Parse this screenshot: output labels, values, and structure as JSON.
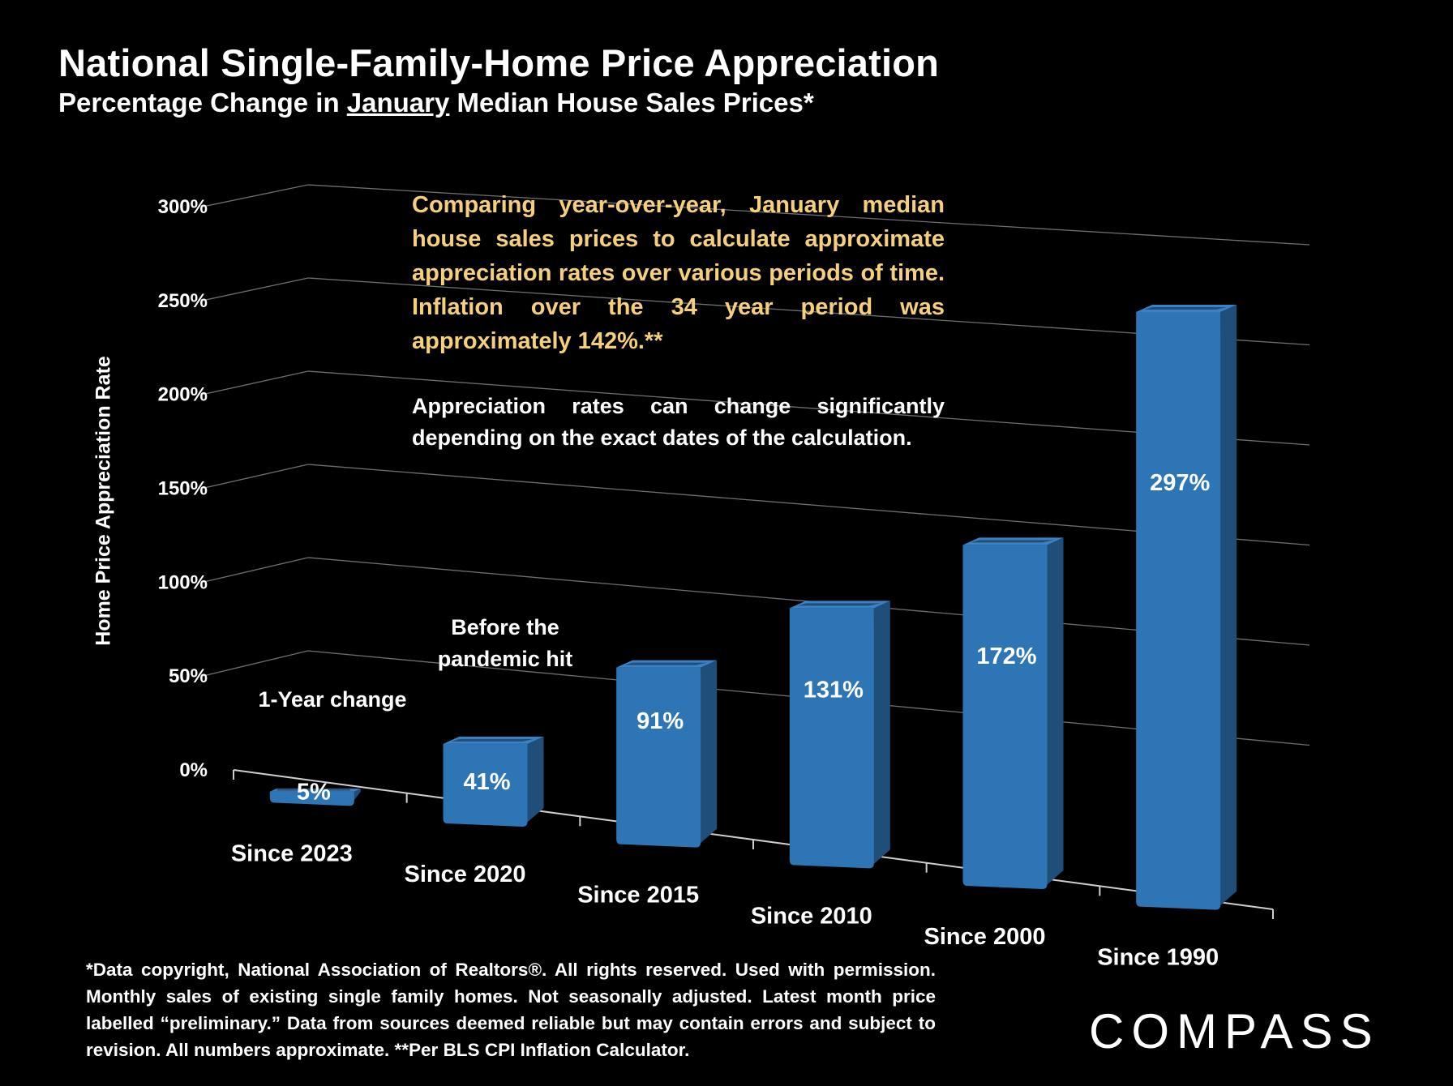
{
  "title": "National Single-Family-Home Price Appreciation",
  "subtitle_before": "Percentage Change in ",
  "subtitle_underlined": "January",
  "subtitle_after": " Median House Sales Prices*",
  "chart_data": {
    "type": "bar",
    "title": "National Single-Family-Home Price Appreciation",
    "subtitle": "Percentage Change in January Median House Sales Prices*",
    "ylabel": "Home Price Appreciation Rate",
    "xlabel": "",
    "ylim": [
      0,
      300
    ],
    "yticks": [
      0,
      50,
      100,
      150,
      200,
      250,
      300
    ],
    "ytick_labels": [
      "0%",
      "50%",
      "100%",
      "150%",
      "200%",
      "250%",
      "300%"
    ],
    "grid": true,
    "categories": [
      "Since 2023",
      "Since 2020",
      "Since 2015",
      "Since 2010",
      "Since 2000",
      "Since 1990"
    ],
    "values": [
      5,
      41,
      91,
      131,
      172,
      297
    ],
    "value_labels": [
      "5%",
      "41%",
      "91%",
      "131%",
      "172%",
      "297%"
    ],
    "annotations": [
      {
        "category": "Since 2023",
        "lines": [
          "1-Year change"
        ]
      },
      {
        "category": "Since 2020",
        "lines": [
          "Before the",
          "pandemic hit"
        ]
      }
    ],
    "bar_color": "#2e75b6"
  },
  "notes": {
    "highlight": "Comparing year-over-year, January median house sales prices to calculate approximate appreciation rates over various periods of time. Inflation over the 34 year period was approximately 142%.**",
    "caveat": "Appreciation rates can change significantly depending on the exact dates of the calculation."
  },
  "footnote": "*Data copyright, National Association of Realtors®. All rights reserved. Used with permission. Monthly sales of existing single family homes. Not seasonally adjusted. Latest month price labelled “preliminary.” Data from sources deemed reliable but may contain errors and subject to revision. All numbers approximate. **Per BLS CPI Inflation Calculator.",
  "logo": "COMPASS",
  "colors": {
    "background": "#000000",
    "bar_front": "#2e75b6",
    "bar_side": "#1f4e79",
    "bar_top": "#3a82c4",
    "highlight_text": "#f6cf7c",
    "text": "#ffffff",
    "gridline": "#6f6f6f"
  }
}
